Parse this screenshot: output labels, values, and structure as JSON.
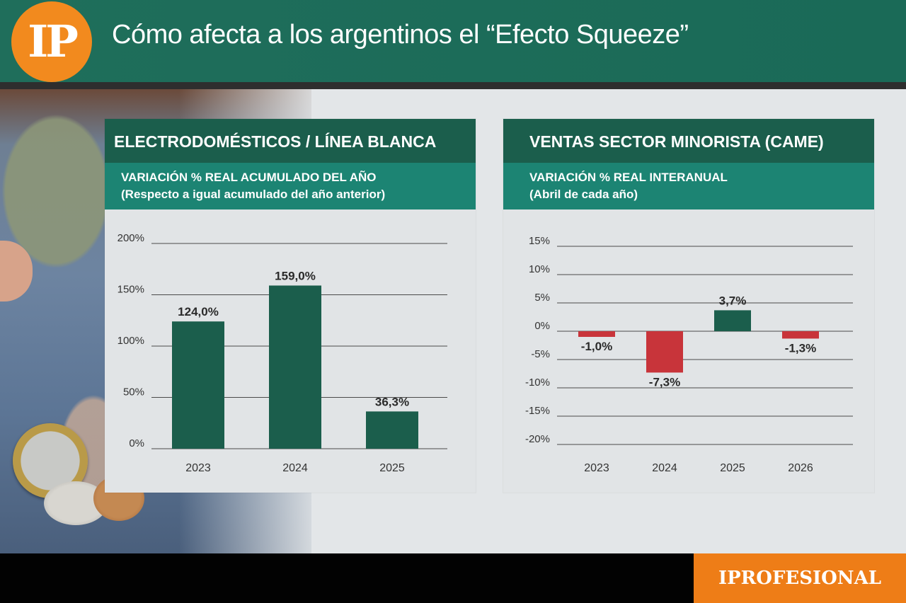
{
  "header": {
    "logo_text": "IP",
    "title": "Cómo afecta a los argentinos el “Efecto Squeeze”",
    "brand_color": "#1b6b58",
    "accent_color": "#f28a1e"
  },
  "footer": {
    "brand": "IPROFESIONAL",
    "brand_color": "#ee7d17"
  },
  "panels": [
    {
      "title": "ELECTRODOMÉSTICOS / LÍNEA BLANCA",
      "subtitle_line1": "VARIACIÓN % REAL ACUMULADO DEL AÑO",
      "subtitle_line2": "(Respecto a igual acumulado del año anterior)"
    },
    {
      "title": "VENTAS SECTOR MINORISTA (CAME)",
      "subtitle_line1": "VARIACIÓN % REAL INTERANUAL",
      "subtitle_line2": "(Abril de cada año)"
    }
  ],
  "chart_data": [
    {
      "type": "bar",
      "title": "ELECTRODOMÉSTICOS / LÍNEA BLANCA",
      "subtitle": "VARIACIÓN % REAL ACUMULADO DEL AÑO (Respecto a igual acumulado del año anterior)",
      "categories": [
        "2023",
        "2024",
        "2025"
      ],
      "values": [
        124.0,
        159.0,
        36.3
      ],
      "value_labels": [
        "124,0%",
        "159,0%",
        "36,3%"
      ],
      "ylim": [
        0,
        200
      ],
      "yticks": [
        0,
        50,
        100,
        150,
        200
      ],
      "ytick_labels": [
        "0%",
        "50%",
        "100%",
        "150%",
        "200%"
      ],
      "grid": true,
      "bar_color": "#1b5e4c"
    },
    {
      "type": "bar",
      "title": "VENTAS SECTOR MINORISTA (CAME)",
      "subtitle": "VARIACIÓN % REAL INTERANUAL (Abril de cada año)",
      "categories": [
        "2023",
        "2024",
        "2025",
        "2026"
      ],
      "values": [
        -1.0,
        -7.3,
        3.7,
        -1.3
      ],
      "value_labels": [
        "-1,0%",
        "-7,3%",
        "3,7%",
        "-1,3%"
      ],
      "ylim": [
        -20,
        15
      ],
      "yticks": [
        -20,
        -15,
        -10,
        -5,
        0,
        5,
        10,
        15
      ],
      "ytick_labels": [
        "-20%",
        "-15%",
        "-10%",
        "-5%",
        "0%",
        "5%",
        "10%",
        "15%"
      ],
      "grid": true,
      "positive_color": "#1b5e4c",
      "negative_color": "#c8343a"
    }
  ]
}
